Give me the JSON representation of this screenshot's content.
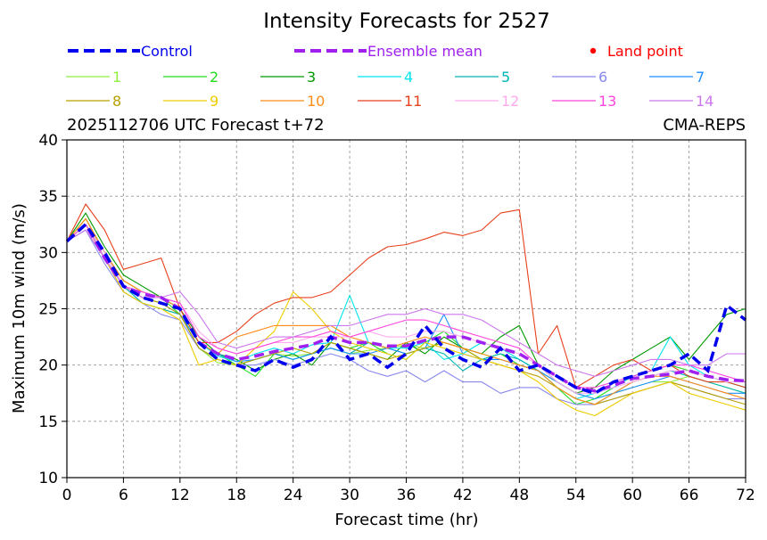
{
  "chart_data": {
    "type": "line",
    "title": "Intensity Forecasts for 2527",
    "subtitle_left": "2025112706 UTC Forecast t+72",
    "subtitle_right": "CMA-REPS",
    "xlabel": "Forecast time (hr)",
    "ylabel": "Maximum 10m wind (m/s)",
    "xlim": [
      0,
      72
    ],
    "ylim": [
      10,
      40
    ],
    "x_ticks": [
      "0",
      "6",
      "12",
      "18",
      "24",
      "30",
      "36",
      "42",
      "48",
      "54",
      "60",
      "66",
      "72"
    ],
    "y_ticks": [
      "10",
      "15",
      "20",
      "25",
      "30",
      "35",
      "40"
    ],
    "grid": true,
    "legend": {
      "control": {
        "label": "Control",
        "color": "#0000ee"
      },
      "mean": {
        "label": "Ensemble mean",
        "color": "#a020f0"
      },
      "land": {
        "label": "Land point",
        "color": "#ff0000"
      }
    },
    "x": [
      0,
      2,
      4,
      6,
      8,
      10,
      12,
      14,
      16,
      18,
      20,
      22,
      24,
      26,
      28,
      30,
      32,
      34,
      36,
      38,
      40,
      42,
      44,
      46,
      48,
      50,
      52,
      54,
      56,
      58,
      60,
      62,
      64,
      66,
      68,
      70,
      72
    ],
    "control": [
      31,
      32.5,
      30,
      27,
      26,
      25.5,
      25,
      22,
      20.5,
      20,
      19.5,
      20.5,
      19.8,
      20.5,
      22.5,
      20.5,
      21,
      19.8,
      21,
      23.5,
      21.5,
      20.5,
      19.8,
      21.5,
      19.5,
      20,
      19,
      18,
      17.5,
      18.5,
      19,
      19.5,
      20,
      21,
      19.5,
      25.3,
      24
    ],
    "mean": [
      31,
      32.5,
      29.5,
      27,
      26.3,
      26,
      25,
      22,
      21,
      20.5,
      20.8,
      21.2,
      21.5,
      21.8,
      22.5,
      22,
      22,
      21.7,
      21.7,
      22.2,
      22.5,
      22.5,
      22,
      21.5,
      21,
      20,
      19,
      18,
      17.7,
      18.2,
      18.8,
      19,
      19.2,
      19.5,
      19,
      18.7,
      18.6
    ],
    "series": [
      {
        "name": "1",
        "color": "#90ee40",
        "values": [
          31,
          32,
          29.5,
          26.5,
          25.5,
          25,
          24.5,
          21.5,
          20.2,
          20,
          20.5,
          21,
          20.8,
          21,
          21.5,
          21,
          21.3,
          21.5,
          21.8,
          21.5,
          22,
          21.5,
          21,
          20.5,
          20,
          19.5,
          18.5,
          17.5,
          17,
          17.5,
          18,
          18.5,
          18.5,
          19,
          18.5,
          18,
          17.5
        ]
      },
      {
        "name": "2",
        "color": "#22dd22",
        "values": [
          31,
          33,
          30,
          27.5,
          26.5,
          26,
          24.5,
          22,
          21,
          20,
          19,
          21,
          20.5,
          21,
          22,
          21.5,
          22,
          21,
          20.5,
          22,
          23,
          21.5,
          20.5,
          21,
          20,
          19.5,
          18,
          16.5,
          17,
          18,
          19,
          19.5,
          20,
          19.5,
          19,
          18.5,
          18
        ]
      },
      {
        "name": "3",
        "color": "#009900",
        "values": [
          31,
          33.5,
          30.5,
          28,
          27,
          26,
          25,
          22.5,
          21,
          20.5,
          19.5,
          20.5,
          21,
          20,
          22,
          21.5,
          21,
          20.5,
          22,
          21,
          22.5,
          21.5,
          21,
          22.5,
          23.5,
          20,
          18.5,
          17.5,
          18,
          19.5,
          20.5,
          21.5,
          22.5,
          20.5,
          22.5,
          24.5,
          25
        ]
      },
      {
        "name": "4",
        "color": "#00e5ee",
        "values": [
          31,
          32.5,
          30,
          27,
          26.5,
          26,
          25,
          22,
          20.8,
          20.3,
          21,
          21.5,
          21,
          21.8,
          22,
          26.2,
          22,
          21.5,
          21.5,
          22,
          20.5,
          21,
          22,
          21.5,
          20.5,
          19.5,
          18,
          17,
          17.5,
          18,
          19,
          19.5,
          22.5,
          20,
          19,
          18.5,
          18
        ]
      },
      {
        "name": "5",
        "color": "#00b4b4",
        "values": [
          31,
          32.5,
          29.5,
          27,
          25.5,
          25,
          24.5,
          21.5,
          20.5,
          20,
          20.5,
          21,
          20.5,
          21,
          21.5,
          21,
          22,
          21.5,
          21,
          21.5,
          21,
          19.5,
          20.5,
          21,
          20.5,
          19.5,
          18,
          17,
          16.5,
          17.5,
          18.5,
          19,
          19.5,
          19,
          18.5,
          18,
          17.5
        ]
      },
      {
        "name": "6",
        "color": "#8888ee",
        "values": [
          31,
          32,
          29,
          26.5,
          25.5,
          24.5,
          24,
          21.5,
          20.5,
          20,
          20,
          20.5,
          20,
          20.5,
          21,
          20.5,
          19.5,
          19,
          19.5,
          18.5,
          19.5,
          18.5,
          18.5,
          17.5,
          18,
          18,
          17,
          16.5,
          16.5,
          17,
          17.5,
          18,
          18.5,
          18,
          17.5,
          17,
          17
        ]
      },
      {
        "name": "7",
        "color": "#1e90ff",
        "values": [
          31,
          32.5,
          30,
          27,
          26,
          25.5,
          24.5,
          22,
          21,
          20.3,
          20.5,
          21,
          20.5,
          21,
          21.5,
          21,
          21,
          21.5,
          21,
          21.5,
          24.5,
          21,
          20.5,
          20.5,
          20,
          19.5,
          18.5,
          17.5,
          17,
          17.5,
          18,
          18.5,
          19,
          18.5,
          18,
          17.5,
          17.5
        ]
      },
      {
        "name": "8",
        "color": "#b8a000",
        "values": [
          31,
          33,
          30,
          27,
          26,
          25.5,
          24.5,
          21.5,
          20.5,
          20,
          20.5,
          21,
          21.5,
          21,
          22,
          21.5,
          21,
          20.5,
          21,
          21.5,
          22,
          21.5,
          20.5,
          20,
          19.5,
          19,
          18,
          17,
          16.5,
          17,
          17.5,
          18,
          18.5,
          18,
          17.5,
          17,
          16.5
        ]
      },
      {
        "name": "9",
        "color": "#eecc00",
        "values": [
          31,
          32.5,
          29.5,
          26.5,
          25.5,
          25,
          24,
          20,
          20.5,
          20,
          21.5,
          23,
          26.5,
          25,
          23,
          22,
          21.5,
          21,
          20.5,
          22,
          21.5,
          21,
          20.5,
          20,
          19.5,
          18.5,
          17,
          16,
          15.5,
          16.5,
          17.5,
          18,
          18.5,
          17.5,
          17,
          16.5,
          16
        ]
      },
      {
        "name": "10",
        "color": "#ff8c1a",
        "values": [
          31,
          33,
          30,
          27.5,
          26.5,
          26,
          25,
          22,
          21,
          22.5,
          23,
          23.5,
          23.5,
          23.5,
          23.5,
          22.5,
          22,
          21.5,
          22,
          22.5,
          22,
          21.5,
          21,
          20.5,
          20,
          19.5,
          18,
          17,
          16.5,
          17.5,
          18.5,
          19,
          19,
          18.5,
          18,
          17.5,
          17
        ]
      },
      {
        "name": "11",
        "color": "#e8401c",
        "values": [
          31,
          34.3,
          32,
          28.5,
          29,
          29.5,
          25,
          22,
          22,
          23,
          24.5,
          25.5,
          26,
          26,
          26.5,
          28,
          29.5,
          30.5,
          30.7,
          31.2,
          31.8,
          31.5,
          32,
          33.5,
          33.8,
          21,
          23.5,
          18,
          19,
          20,
          20.5,
          19.5,
          20,
          19,
          18.5,
          18.5,
          18
        ]
      },
      {
        "name": "12",
        "color": "#ffaaee",
        "values": [
          31,
          32.5,
          30,
          27,
          26.5,
          26,
          25.5,
          23,
          21.5,
          21,
          21.5,
          22,
          22,
          22.5,
          22.5,
          22.5,
          23,
          22.5,
          22.5,
          23,
          23,
          22.5,
          22,
          21.5,
          21,
          20,
          18.5,
          17.5,
          17.5,
          18,
          18.5,
          19,
          19.5,
          19.5,
          19,
          18.5,
          18.5
        ]
      },
      {
        "name": "13",
        "color": "#ff44dd",
        "values": [
          31,
          32.5,
          29.5,
          27,
          26.5,
          26,
          25.5,
          22.5,
          21.5,
          21,
          21.5,
          22,
          22.5,
          22.5,
          23,
          22.5,
          23,
          23.5,
          24,
          24,
          23.5,
          23,
          22.5,
          22,
          21.5,
          20,
          19,
          18,
          18,
          18.5,
          19,
          19.5,
          20,
          20,
          19.5,
          19,
          18.5
        ]
      },
      {
        "name": "14",
        "color": "#cc77ee",
        "values": [
          31,
          32,
          29.5,
          27,
          26,
          26,
          26.5,
          24.5,
          22,
          21.5,
          22,
          22.5,
          22.5,
          23,
          23.5,
          23.5,
          24,
          24.5,
          24.5,
          25,
          24.5,
          24.5,
          24,
          23,
          22,
          21,
          20,
          19.5,
          19,
          19.5,
          20,
          20.5,
          20.5,
          20,
          20,
          21,
          21
        ]
      }
    ]
  }
}
